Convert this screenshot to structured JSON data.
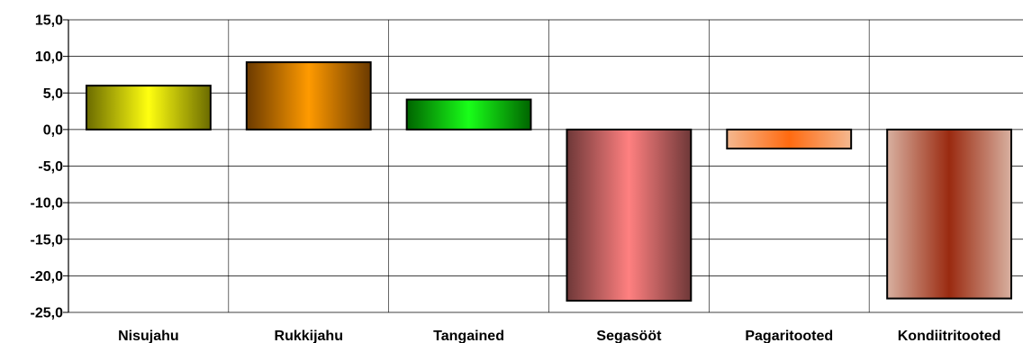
{
  "chart_data": {
    "type": "bar",
    "categories": [
      "Nisujahu",
      "Rukkijahu",
      "Tangained",
      "Segasööt",
      "Pagaritooted",
      "Kondiitritooted"
    ],
    "values": [
      6.0,
      9.2,
      4.1,
      -23.4,
      -2.6,
      -23.1
    ],
    "ylim": [
      -25,
      15
    ],
    "yticks": [
      "15,0",
      "10,0",
      "5,0",
      "0,0",
      "-5,0",
      "-10,0",
      "-15,0",
      "-20,0",
      "-25,0"
    ],
    "ytick_values": [
      15,
      10,
      5,
      0,
      -5,
      -10,
      -15,
      -20,
      -25
    ],
    "grid": true,
    "bar_colors": [
      {
        "edge": "#6b6b00",
        "center": "#ffff10"
      },
      {
        "edge": "#6b3a00",
        "center": "#ff9a00"
      },
      {
        "edge": "#006400",
        "center": "#19ff19"
      },
      {
        "edge": "#6e3838",
        "center": "#ff8080"
      },
      {
        "edge": "#f4b890",
        "center": "#ff6a10"
      },
      {
        "edge": "#d8b0a0",
        "center": "#9a2a10"
      }
    ]
  }
}
